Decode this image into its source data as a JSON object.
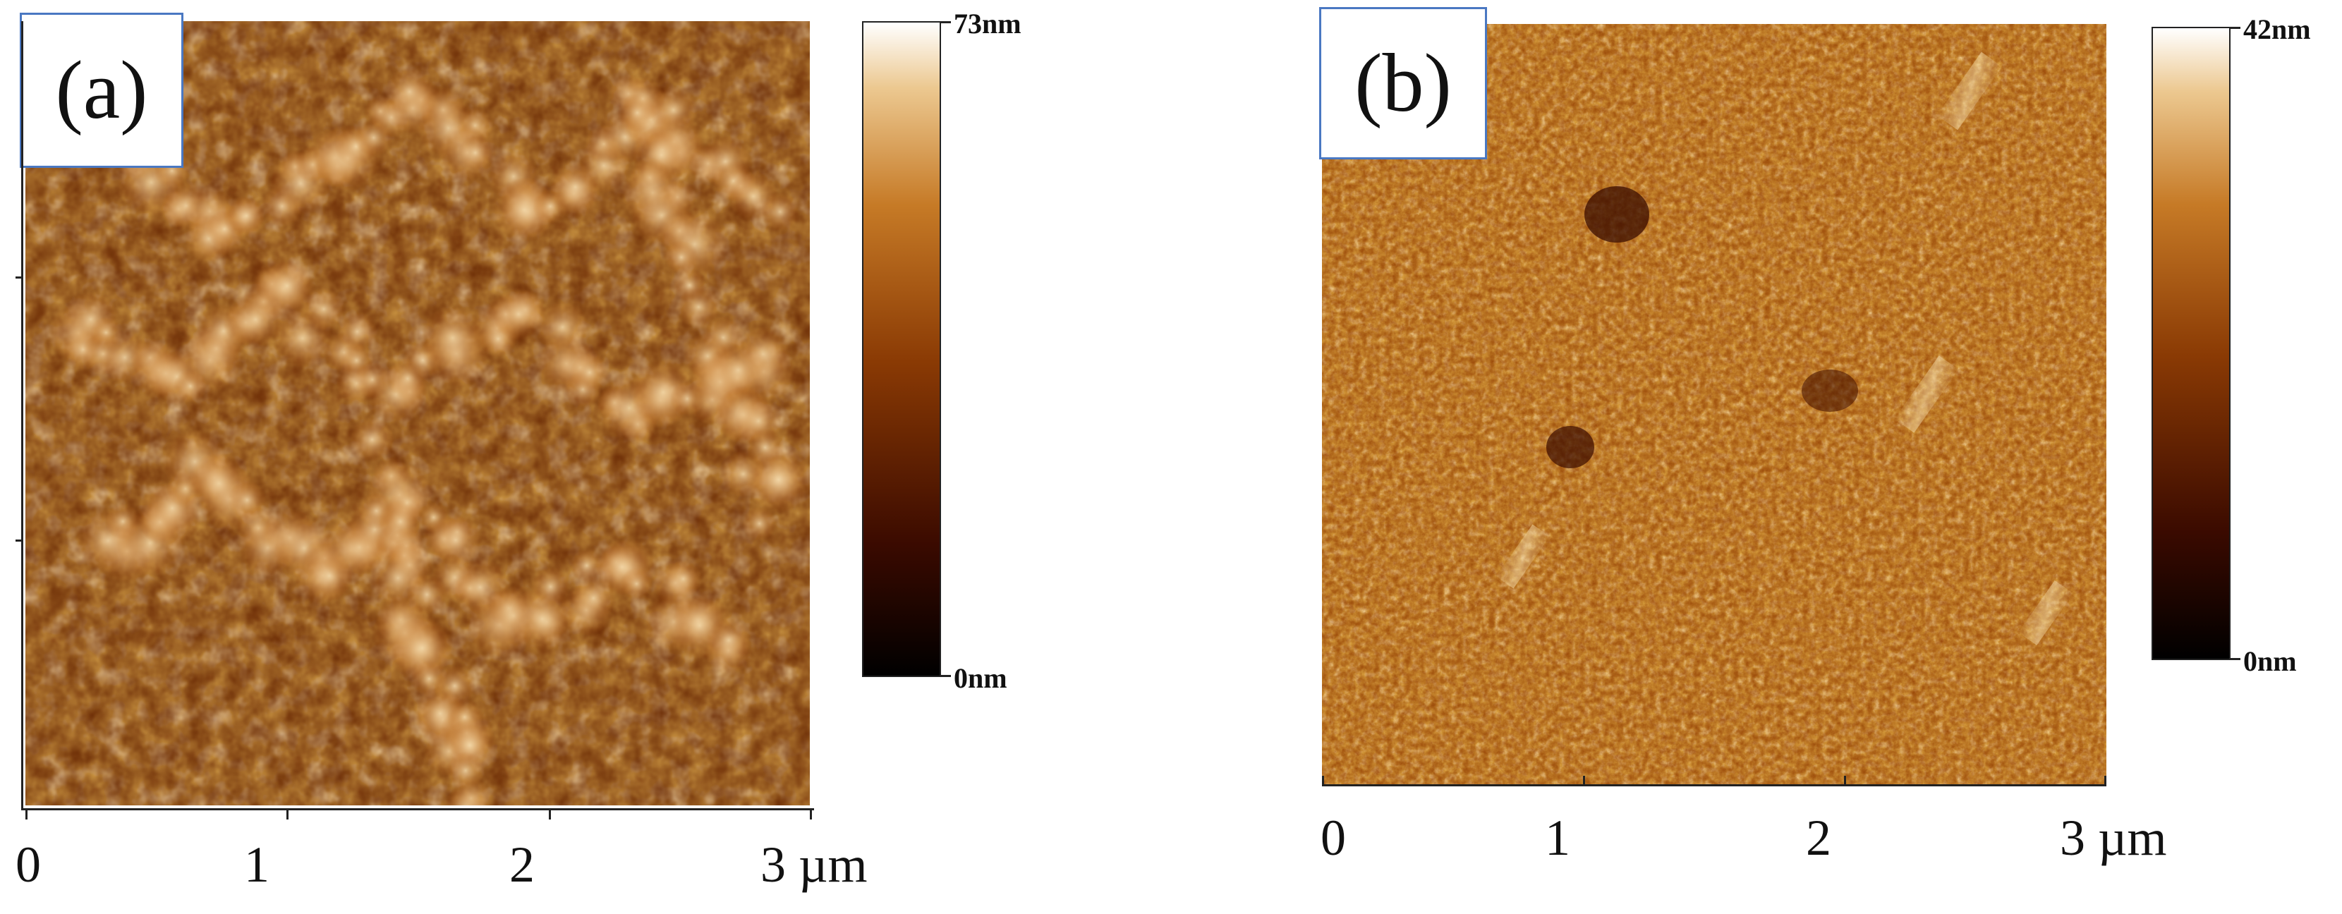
{
  "panels": [
    {
      "label": "(a)",
      "colorbar": {
        "max_label": "73nm",
        "min_label": "0nm"
      },
      "x_axis": {
        "ticks": [
          "0",
          "1",
          "2",
          "3 µm"
        ]
      }
    },
    {
      "label": "(b)",
      "colorbar": {
        "max_label": "42nm",
        "min_label": "0nm"
      },
      "x_axis": {
        "ticks": [
          "0",
          "1",
          "2",
          "3 µm"
        ]
      }
    }
  ],
  "colors": {
    "afm_dark": "#1a0500",
    "afm_mid": "#8a3a04",
    "afm_bright": "#f6e6c6",
    "label_border": "#4a78c2"
  }
}
